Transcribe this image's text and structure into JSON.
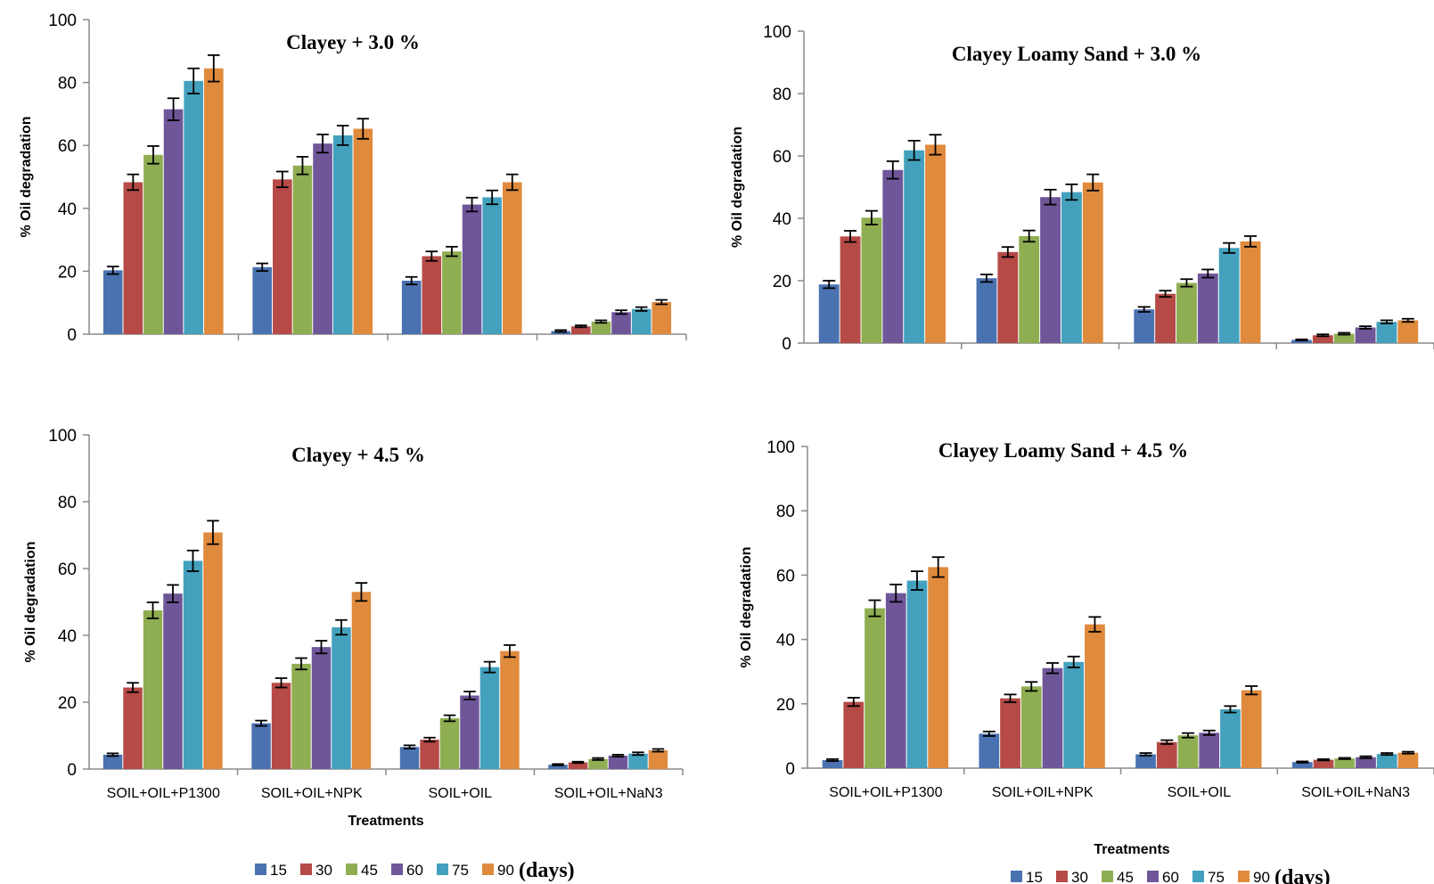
{
  "colors": {
    "s15": "#4a72b0",
    "s30": "#b54a47",
    "s45": "#8fae52",
    "s60": "#6f5699",
    "s75": "#43a1bd",
    "s90": "#e08a3d",
    "axis": "#8a8a8a"
  },
  "legend": {
    "days_label": "(days)"
  },
  "chart_data": [
    {
      "type": "bar",
      "title": "Clayey + 3.0 %",
      "ylabel": "% Oil degradation",
      "xlabel": "",
      "ylim": [
        0,
        100
      ],
      "yticks": [
        "0",
        "20",
        "40",
        "60",
        "80",
        "100"
      ],
      "categories": [
        "SOIL+OIL+P1300",
        "SOIL+OIL+NPK",
        "SOIL+OIL",
        "SOIL+OIL+NaN3"
      ],
      "show_category_labels": false,
      "error_bars": true,
      "series": [
        {
          "name": "15",
          "values": [
            20.3,
            21.3,
            17.0,
            1.0
          ],
          "errors": [
            1.2,
            1.2,
            1.2,
            0.3
          ]
        },
        {
          "name": "30",
          "values": [
            48.3,
            49.2,
            24.8,
            2.5
          ],
          "errors": [
            2.5,
            2.5,
            1.5,
            0.3
          ]
        },
        {
          "name": "45",
          "values": [
            57.0,
            53.6,
            26.3,
            4.0
          ],
          "errors": [
            2.8,
            2.8,
            1.5,
            0.4
          ]
        },
        {
          "name": "60",
          "values": [
            71.5,
            60.6,
            41.2,
            7.0
          ],
          "errors": [
            3.5,
            2.9,
            2.2,
            0.6
          ]
        },
        {
          "name": "75",
          "values": [
            80.5,
            63.2,
            43.5,
            8.0
          ],
          "errors": [
            4.0,
            3.1,
            2.2,
            0.6
          ]
        },
        {
          "name": "90",
          "values": [
            84.5,
            65.3,
            48.3,
            10.2
          ],
          "errors": [
            4.2,
            3.2,
            2.5,
            0.7
          ]
        }
      ]
    },
    {
      "type": "bar",
      "title": "Clayey Loamy Sand + 3.0 %",
      "ylabel": "% Oil degradation",
      "xlabel": "",
      "ylim": [
        0,
        100
      ],
      "yticks": [
        "0",
        "20",
        "40",
        "60",
        "80",
        "100"
      ],
      "categories": [
        "SOIL+OIL+P1300",
        "SOIL+OIL+NPK",
        "SOIL+OIL",
        "SOIL+OIL+NaN3"
      ],
      "show_category_labels": false,
      "error_bars": true,
      "series": [
        {
          "name": "15",
          "values": [
            18.8,
            20.8,
            10.8,
            1.0
          ],
          "errors": [
            1.2,
            1.2,
            0.8,
            0.2
          ]
        },
        {
          "name": "30",
          "values": [
            34.2,
            29.2,
            15.8,
            2.5
          ],
          "errors": [
            1.8,
            1.6,
            1.0,
            0.3
          ]
        },
        {
          "name": "45",
          "values": [
            40.2,
            34.3,
            19.3,
            3.0
          ],
          "errors": [
            2.2,
            1.8,
            1.2,
            0.3
          ]
        },
        {
          "name": "60",
          "values": [
            55.5,
            46.8,
            22.3,
            5.0
          ],
          "errors": [
            2.8,
            2.4,
            1.3,
            0.4
          ]
        },
        {
          "name": "75",
          "values": [
            61.8,
            48.4,
            30.5,
            6.8
          ],
          "errors": [
            3.1,
            2.5,
            1.6,
            0.5
          ]
        },
        {
          "name": "90",
          "values": [
            63.6,
            51.5,
            32.6,
            7.3
          ],
          "errors": [
            3.2,
            2.6,
            1.7,
            0.5
          ]
        }
      ]
    },
    {
      "type": "bar",
      "title": "Clayey + 4.5 %",
      "ylabel": "% Oil degradation",
      "xlabel": "Treatments",
      "ylim": [
        0,
        100
      ],
      "yticks": [
        "0",
        "20",
        "40",
        "60",
        "80",
        "100"
      ],
      "categories": [
        "SOIL+OIL+P1300",
        "SOIL+OIL+NPK",
        "SOIL+OIL",
        "SOIL+OIL+NaN3"
      ],
      "show_category_labels": true,
      "error_bars": true,
      "series": [
        {
          "name": "15",
          "values": [
            4.3,
            13.7,
            6.6,
            1.3
          ],
          "errors": [
            0.4,
            0.8,
            0.5,
            0.2
          ]
        },
        {
          "name": "30",
          "values": [
            24.4,
            25.8,
            8.8,
            2.0
          ],
          "errors": [
            1.4,
            1.4,
            0.6,
            0.2
          ]
        },
        {
          "name": "45",
          "values": [
            47.5,
            31.5,
            15.2,
            3.0
          ],
          "errors": [
            2.4,
            1.7,
            0.9,
            0.3
          ]
        },
        {
          "name": "60",
          "values": [
            52.5,
            36.5,
            22.0,
            4.0
          ],
          "errors": [
            2.6,
            1.9,
            1.2,
            0.3
          ]
        },
        {
          "name": "75",
          "values": [
            62.3,
            42.4,
            30.5,
            4.6
          ],
          "errors": [
            3.1,
            2.2,
            1.6,
            0.4
          ]
        },
        {
          "name": "90",
          "values": [
            70.8,
            53.0,
            35.3,
            5.6
          ],
          "errors": [
            3.5,
            2.7,
            1.8,
            0.4
          ]
        }
      ]
    },
    {
      "type": "bar",
      "title": "Clayey Loamy Sand + 4.5 %",
      "ylabel": "% Oil degradation",
      "xlabel": "Treatments",
      "ylim": [
        0,
        100
      ],
      "yticks": [
        "0",
        "20",
        "40",
        "60",
        "80",
        "100"
      ],
      "categories": [
        "SOIL+OIL+P1300",
        "SOIL+OIL+NPK",
        "SOIL+OIL",
        "SOIL+OIL+NaN3"
      ],
      "show_category_labels": true,
      "error_bars": true,
      "series": [
        {
          "name": "15",
          "values": [
            2.5,
            10.7,
            4.3,
            1.9
          ],
          "errors": [
            0.3,
            0.7,
            0.4,
            0.2
          ]
        },
        {
          "name": "30",
          "values": [
            20.6,
            21.7,
            8.1,
            2.6
          ],
          "errors": [
            1.3,
            1.2,
            0.6,
            0.2
          ]
        },
        {
          "name": "45",
          "values": [
            49.7,
            25.4,
            10.2,
            3.0
          ],
          "errors": [
            2.5,
            1.4,
            0.7,
            0.2
          ]
        },
        {
          "name": "60",
          "values": [
            54.4,
            31.1,
            11.0,
            3.4
          ],
          "errors": [
            2.7,
            1.6,
            0.7,
            0.3
          ]
        },
        {
          "name": "75",
          "values": [
            58.3,
            33.0,
            18.3,
            4.4
          ],
          "errors": [
            2.9,
            1.7,
            1.0,
            0.3
          ]
        },
        {
          "name": "90",
          "values": [
            62.5,
            44.7,
            24.2,
            4.8
          ],
          "errors": [
            3.1,
            2.3,
            1.3,
            0.3
          ]
        }
      ]
    }
  ]
}
